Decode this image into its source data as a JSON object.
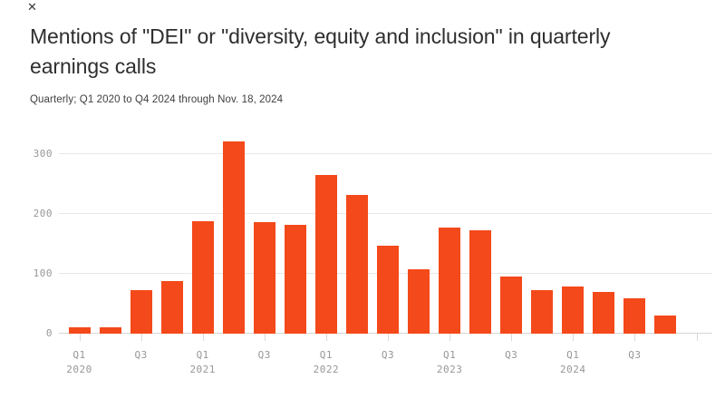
{
  "page": {
    "close_label": "✕"
  },
  "header": {
    "title": "Mentions of \"DEI\" or \"diversity, equity and inclusion\" in quarterly earnings calls",
    "subtitle": "Quarterly; Q1 2020 to Q4 2024 through Nov. 18, 2024"
  },
  "chart_data": {
    "type": "bar",
    "title": "Mentions of \"DEI\" or \"diversity, equity and inclusion\" in quarterly earnings calls",
    "subtitle": "Quarterly; Q1 2020 to Q4 2024 through Nov. 18, 2024",
    "categories": [
      "Q1 2020",
      "Q2 2020",
      "Q3 2020",
      "Q4 2020",
      "Q1 2021",
      "Q2 2021",
      "Q3 2021",
      "Q4 2021",
      "Q1 2022",
      "Q2 2022",
      "Q3 2022",
      "Q4 2022",
      "Q1 2023",
      "Q2 2023",
      "Q3 2023",
      "Q4 2023",
      "Q1 2024",
      "Q2 2024",
      "Q3 2024",
      "Q4 2024"
    ],
    "values": [
      10,
      10,
      72,
      88,
      187,
      320,
      186,
      181,
      265,
      231,
      147,
      107,
      177,
      172,
      95,
      73,
      78,
      69,
      59,
      31
    ],
    "yticks": [
      0,
      100,
      200,
      300
    ],
    "ylim": [
      0,
      330
    ],
    "xticks": [
      {
        "q": "Q1",
        "year": "2020"
      },
      {
        "q": "Q3",
        "year": ""
      },
      {
        "q": "Q1",
        "year": "2021"
      },
      {
        "q": "Q3",
        "year": ""
      },
      {
        "q": "Q1",
        "year": "2022"
      },
      {
        "q": "Q3",
        "year": ""
      },
      {
        "q": "Q1",
        "year": "2023"
      },
      {
        "q": "Q3",
        "year": ""
      },
      {
        "q": "Q1",
        "year": "2024"
      },
      {
        "q": "Q3",
        "year": ""
      },
      {
        "q": "",
        "year": ""
      }
    ],
    "xlabel": "",
    "ylabel": "",
    "grid": "horizontal",
    "legend": "none",
    "bar_color": "#F4491A"
  },
  "colors": {
    "bar": "#F4491A",
    "gridline": "#E7E7E7",
    "zero_line": "#D6D6D6",
    "axis_text": "#979797",
    "title_text": "#2E2E2E",
    "subtitle_text": "#3F3F3F",
    "background": "#FFFFFF"
  }
}
